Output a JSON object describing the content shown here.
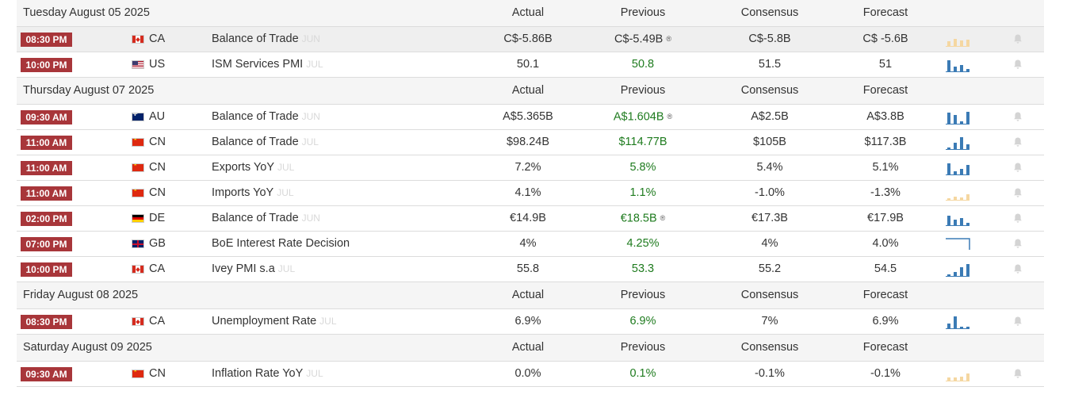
{
  "columns": {
    "actual": "Actual",
    "previous": "Previous",
    "consensus": "Consensus",
    "forecast": "Forecast"
  },
  "days": [
    {
      "date": "Tuesday August 05 2025",
      "events": [
        {
          "time": "08:30 PM",
          "flag": "ca",
          "country": "CA",
          "name": "Balance of Trade",
          "ref": "JUN",
          "actual": "C$-5.86B",
          "previous": "C$-5.49B",
          "prev_revised": true,
          "prev_green": false,
          "consensus": "C$-5.8B",
          "forecast": "C$ -5.6B",
          "highlight": true,
          "spark": {
            "colors": "#f5d7a1",
            "values": [
              6,
              9,
              7,
              8
            ]
          }
        },
        {
          "time": "10:00 PM",
          "flag": "us",
          "country": "US",
          "name": "ISM Services PMI",
          "ref": "JUL",
          "actual": "50.1",
          "previous": "50.8",
          "prev_revised": false,
          "prev_green": true,
          "consensus": "51.5",
          "forecast": "51",
          "highlight": false,
          "spark": {
            "colors": "#3b7bb5",
            "values": [
              14,
              6,
              8,
              3
            ]
          }
        }
      ]
    },
    {
      "date": "Thursday August 07 2025",
      "events": [
        {
          "time": "09:30 AM",
          "flag": "au",
          "country": "AU",
          "name": "Balance of Trade",
          "ref": "JUN",
          "actual": "A$5.365B",
          "previous": "A$1.604B",
          "prev_revised": true,
          "prev_green": true,
          "consensus": "A$2.5B",
          "forecast": "A$3.8B",
          "highlight": false,
          "spark": {
            "colors": "#3b7bb5",
            "values": [
              14,
              11,
              3,
              15
            ]
          }
        },
        {
          "time": "11:00 AM",
          "flag": "cn",
          "country": "CN",
          "name": "Balance of Trade",
          "ref": "JUL",
          "actual": "$98.24B",
          "previous": "$114.77B",
          "prev_revised": false,
          "prev_green": true,
          "consensus": "$105B",
          "forecast": "$117.3B",
          "highlight": false,
          "spark": {
            "colors": "#3b7bb5",
            "values": [
              2,
              8,
              15,
              6
            ]
          }
        },
        {
          "time": "11:00 AM",
          "flag": "cn",
          "country": "CN",
          "name": "Exports YoY",
          "ref": "JUL",
          "actual": "7.2%",
          "previous": "5.8%",
          "prev_revised": false,
          "prev_green": true,
          "consensus": "5.4%",
          "forecast": "5.1%",
          "highlight": false,
          "spark": {
            "colors": "#3b7bb5",
            "values": [
              14,
              4,
              7,
              12
            ]
          }
        },
        {
          "time": "11:00 AM",
          "flag": "cn",
          "country": "CN",
          "name": "Imports YoY",
          "ref": "JUL",
          "actual": "4.1%",
          "previous": "1.1%",
          "prev_revised": false,
          "prev_green": true,
          "consensus": "-1.0%",
          "forecast": "-1.3%",
          "highlight": false,
          "spark": {
            "colors": "#f5d7a1",
            "values": [
              2,
              4,
              3,
              7
            ]
          }
        },
        {
          "time": "02:00 PM",
          "flag": "de",
          "country": "DE",
          "name": "Balance of Trade",
          "ref": "JUN",
          "actual": "€14.9B",
          "previous": "€18.5B",
          "prev_revised": true,
          "prev_green": true,
          "consensus": "€17.3B",
          "forecast": "€17.9B",
          "highlight": false,
          "spark": {
            "colors": "#3b7bb5",
            "values": [
              12,
              7,
              9,
              3
            ]
          }
        },
        {
          "time": "07:00 PM",
          "flag": "gb",
          "country": "GB",
          "name": "BoE Interest Rate Decision",
          "ref": "",
          "actual": "4%",
          "previous": "4.25%",
          "prev_revised": false,
          "prev_green": true,
          "consensus": "4%",
          "forecast": "4.0%",
          "highlight": false,
          "spark": {
            "colors": "#3b7bb5",
            "values": []
          }
        },
        {
          "time": "10:00 PM",
          "flag": "ca",
          "country": "CA",
          "name": "Ivey PMI s.a",
          "ref": "JUL",
          "actual": "55.8",
          "previous": "53.3",
          "prev_revised": false,
          "prev_green": true,
          "consensus": "55.2",
          "forecast": "54.5",
          "highlight": false,
          "spark": {
            "colors": "#3b7bb5",
            "values": [
              2,
              5,
              11,
              15
            ]
          }
        }
      ]
    },
    {
      "date": "Friday August 08 2025",
      "events": [
        {
          "time": "08:30 PM",
          "flag": "ca",
          "country": "CA",
          "name": "Unemployment Rate",
          "ref": "JUL",
          "actual": "6.9%",
          "previous": "6.9%",
          "prev_revised": false,
          "prev_green": true,
          "consensus": "7%",
          "forecast": "6.9%",
          "highlight": false,
          "spark": {
            "colors": "#3b7bb5",
            "values": [
              6,
              15,
              2,
              2
            ]
          }
        }
      ]
    },
    {
      "date": "Saturday August 09 2025",
      "events": [
        {
          "time": "09:30 AM",
          "flag": "cn",
          "country": "CN",
          "name": "Inflation Rate YoY",
          "ref": "JUL",
          "actual": "0.0%",
          "previous": "0.1%",
          "prev_revised": false,
          "prev_green": true,
          "consensus": "-0.1%",
          "forecast": "-0.1%",
          "highlight": false,
          "spark": {
            "colors": "#f5d7a1",
            "values": [
              4,
              4,
              5,
              9
            ]
          }
        }
      ]
    }
  ],
  "colors": {
    "time_badge": "#a8363a",
    "green": "#1e7b1e",
    "spark_blue": "#3b7bb5",
    "spark_gold": "#f5d7a1"
  },
  "icons": {
    "revised": "revised-icon",
    "bell": "bell-icon"
  }
}
